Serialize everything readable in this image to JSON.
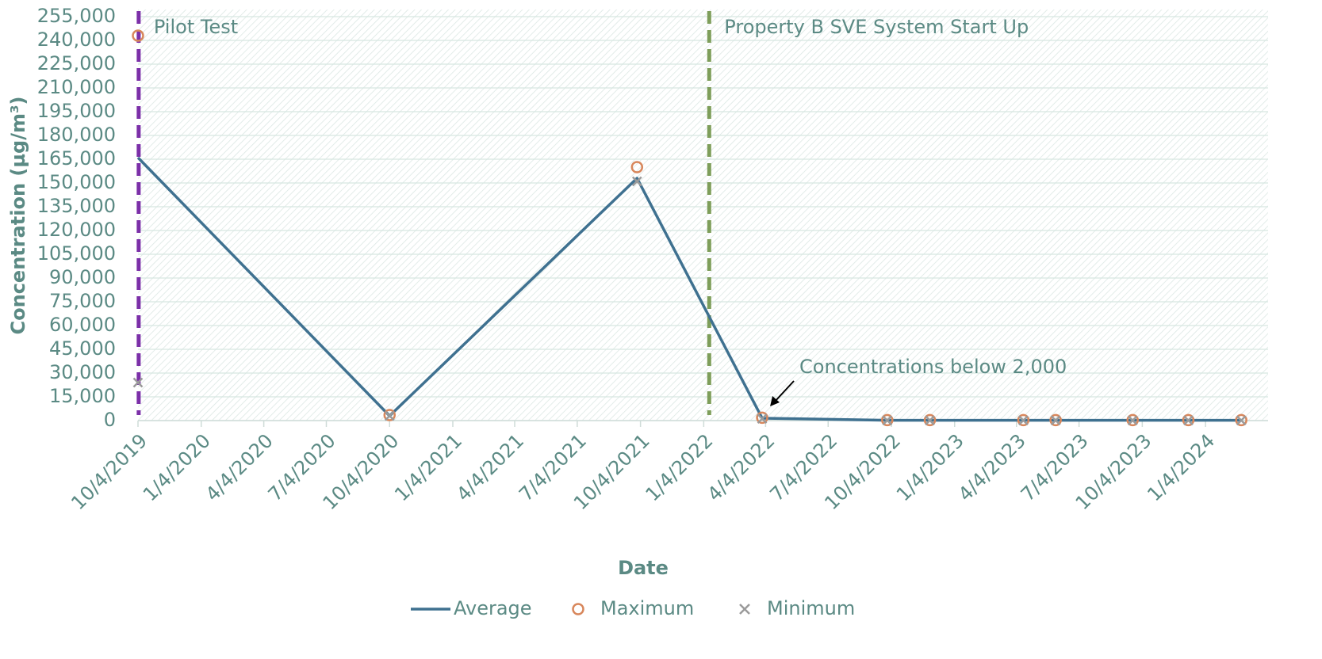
{
  "chart_data": {
    "type": "line",
    "x_label": "Date",
    "y_label": "Concentration (µg/m³)",
    "x": [
      "10/4/2019",
      "10/4/2020",
      "9/29/2021",
      "3/30/2022",
      "9/28/2022",
      "11/29/2022",
      "4/14/2023",
      "5/31/2023",
      "9/20/2023",
      "12/10/2023",
      "2/25/2024"
    ],
    "series": [
      {
        "name": "Average",
        "color": "#3f7190",
        "style": "line",
        "values": [
          166000,
          3000,
          153000,
          1500,
          200,
          200,
          200,
          200,
          200,
          200,
          200
        ]
      },
      {
        "name": "Maximum",
        "color": "#d8875c",
        "style": "circle",
        "values": [
          243000,
          3500,
          160000,
          1800,
          300,
          300,
          300,
          300,
          300,
          300,
          300
        ]
      },
      {
        "name": "Minimum",
        "color": "#9a9a9a",
        "style": "x",
        "values": [
          24000,
          3000,
          151000,
          1200,
          100,
          100,
          100,
          100,
          100,
          100,
          100
        ]
      }
    ],
    "xlim": [
      "10/4/2019",
      "4/4/2024"
    ],
    "xticks": [
      "10/4/2019",
      "1/4/2020",
      "4/4/2020",
      "7/4/2020",
      "10/4/2020",
      "1/4/2021",
      "4/4/2021",
      "7/4/2021",
      "10/4/2021",
      "1/4/2022",
      "4/4/2022",
      "7/4/2022",
      "10/4/2022",
      "1/4/2023",
      "4/4/2023",
      "7/4/2023",
      "10/4/2023",
      "1/4/2024"
    ],
    "ylim": [
      0,
      255000
    ],
    "yticks": [
      0,
      {
        "value": 15000,
        "label": "15,000"
      },
      {
        "value": 30000,
        "label": "30,000"
      },
      {
        "value": 45000,
        "label": "45,000"
      },
      {
        "value": 60000,
        "label": "60,000"
      },
      {
        "value": 75000,
        "label": "75,000"
      },
      {
        "value": 90000,
        "label": "90,000"
      },
      {
        "value": 105000,
        "label": "105,000"
      },
      {
        "value": 120000,
        "label": "120,000"
      },
      {
        "value": 135000,
        "label": "135,000"
      },
      {
        "value": 150000,
        "label": "150,000"
      },
      {
        "value": 165000,
        "label": "165,000"
      },
      {
        "value": 180000,
        "label": "180,000"
      },
      {
        "value": 195000,
        "label": "195,000"
      },
      {
        "value": 210000,
        "label": "210,000"
      },
      {
        "value": 225000,
        "label": "225,000"
      },
      {
        "value": 240000,
        "label": "240,000"
      },
      {
        "value": 255000,
        "label": "255,000"
      }
    ],
    "grid": true,
    "legend": "bottom",
    "vlines": [
      {
        "text": "Pilot Test",
        "x": "10/5/2019",
        "color": "#7b2fa8"
      },
      {
        "text": "Property B SVE System Start Up",
        "x": "1/12/2022",
        "color": "#7e9e5a"
      }
    ],
    "annotations": [
      {
        "text": "Concentrations below 2,000",
        "x": "3/30/2022",
        "y": 1500
      }
    ]
  }
}
